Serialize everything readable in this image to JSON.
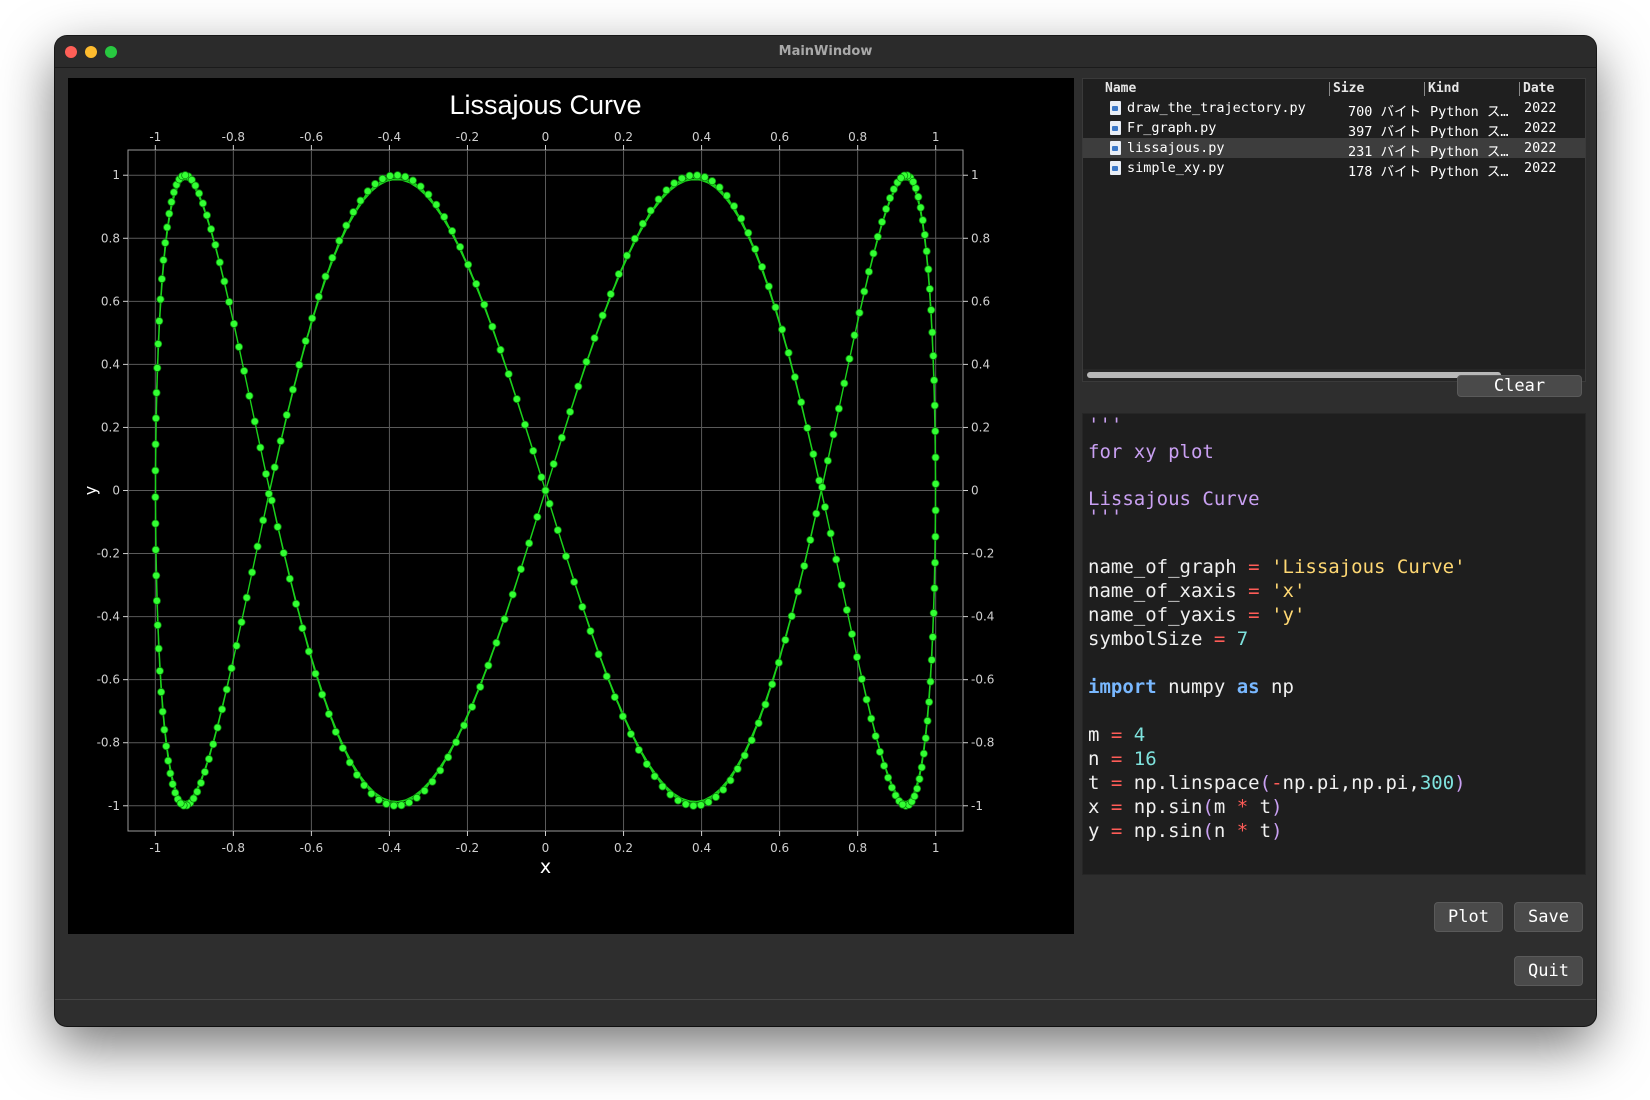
{
  "window": {
    "title": "MainWindow"
  },
  "chart_data": {
    "type": "scatter",
    "title": "Lissajous Curve",
    "xlabel": "x",
    "ylabel": "y",
    "xlim": [
      -1.07,
      1.07
    ],
    "ylim": [
      -1.08,
      1.08
    ],
    "x_ticks": [
      -1,
      -0.8,
      -0.6,
      -0.4,
      -0.2,
      0,
      0.2,
      0.4,
      0.6,
      0.8,
      1
    ],
    "y_ticks": [
      -1,
      -0.8,
      -0.6,
      -0.4,
      -0.2,
      0,
      0.2,
      0.4,
      0.6,
      0.8,
      1
    ],
    "grid": true,
    "line_color": "#1bd11b",
    "marker_color": "#33ff33",
    "series": [
      {
        "x_formula": "sin(4 t)",
        "y_formula": "sin(16 t)",
        "t_start": -3.14159265,
        "t_end": 3.14159265,
        "n_points": 300
      }
    ]
  },
  "file_browser": {
    "columns": [
      "Name",
      "Size",
      "Kind",
      "Date"
    ],
    "files": [
      {
        "name": "draw_the_trajectory.py",
        "size": "700 バイト",
        "kind": "Python ス…",
        "date": "2022",
        "selected": false
      },
      {
        "name": "Fr_graph.py",
        "size": "397 バイト",
        "kind": "Python ス…",
        "date": "2022",
        "selected": false
      },
      {
        "name": "lissajous.py",
        "size": "231 バイト",
        "kind": "Python ス…",
        "date": "2022",
        "selected": true
      },
      {
        "name": "simple_xy.py",
        "size": "178 バイト",
        "kind": "Python ス…",
        "date": "2022",
        "selected": false
      }
    ]
  },
  "buttons": {
    "clear": "Clear",
    "plot": "Plot",
    "save": "Save",
    "quit": "Quit"
  },
  "editor": {
    "lines": [
      "'''",
      "for xy plot",
      "",
      "Lissajous Curve",
      "'''",
      "",
      "name_of_graph = 'Lissajous Curve'",
      "name_of_xaxis = 'x'",
      "name_of_yaxis = 'y'",
      "symbolSize = 7",
      "",
      "import numpy as np",
      "",
      "m = 4",
      "n = 16",
      "t = np.linspace(-np.pi,np.pi,300)",
      "x = np.sin(m * t)",
      "y = np.sin(n * t)"
    ]
  },
  "colors": {
    "window_bg": "#2e2e2e",
    "plot_bg": "#000000",
    "string": "#ffd873",
    "docstring": "#c9a0f2",
    "operator": "#ff5c57",
    "number": "#7fe3de",
    "keyword": "#79b8ff"
  }
}
